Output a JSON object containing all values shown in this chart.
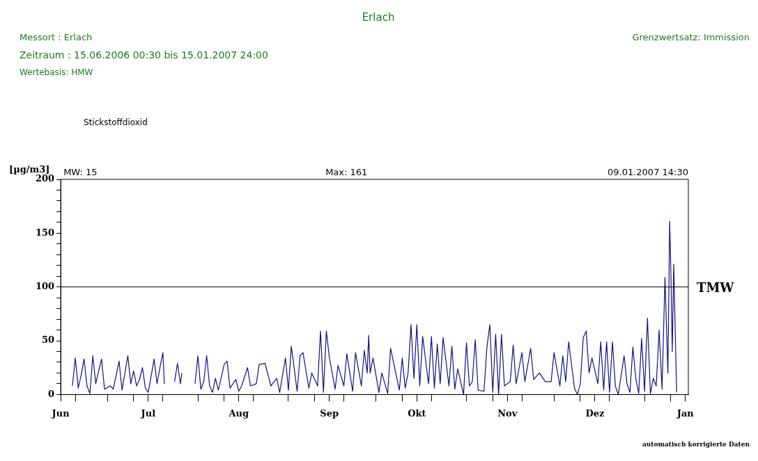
{
  "chart_data": {
    "type": "line",
    "title": "Erlach",
    "ylabel": "[µg/m3]",
    "annotations": [
      "Messort : Erlach",
      "Grenzwertsatz: Immission",
      "Zeitraum : 15.06.2006 00:30 bis 15.01.2007 24:00",
      "Wertebasis: HMW",
      "Stickstoffdioxid",
      "MW: 15",
      "Max: 161",
      "09.01.2007 14:30",
      "automatisch korrigierte Daten"
    ],
    "x": [
      "2006-06-19",
      "2006-06-20",
      "2006-06-21",
      "2006-06-22",
      "2006-06-23",
      "2006-06-24",
      "2006-06-25",
      "2006-06-26",
      "2006-06-27",
      "2006-06-28",
      "2006-06-29",
      "2006-06-30",
      "2006-07-02",
      "2006-07-03",
      "2006-07-05",
      "2006-07-06",
      "2006-07-08",
      "2006-07-09",
      "2006-07-10",
      "2006-07-11",
      "2006-07-12",
      "2006-07-13",
      "2006-07-14",
      "2006-07-15",
      "2006-07-17",
      "2006-07-18",
      "2006-07-19",
      "2006-07-20",
      "2006-07-20T12:00",
      "2006-07-22",
      "2006-07-24",
      "2006-07-25",
      "2006-07-26",
      "2006-07-26T12:00",
      "2006-07-28",
      "2006-07-31",
      "2006-08-01",
      "2006-08-02",
      "2006-08-03",
      "2006-08-04",
      "2006-08-05",
      "2006-08-06",
      "2006-08-07",
      "2006-08-08",
      "2006-08-10",
      "2006-08-11",
      "2006-08-12",
      "2006-08-14",
      "2006-08-15",
      "2006-08-16",
      "2006-08-18",
      "2006-08-19",
      "2006-08-21",
      "2006-08-22",
      "2006-08-24",
      "2006-08-26",
      "2006-08-28",
      "2006-08-29",
      "2006-08-31",
      "2006-09-01",
      "2006-09-02",
      "2006-09-04",
      "2006-09-05",
      "2006-09-06",
      "2006-09-08",
      "2006-09-09",
      "2006-09-11",
      "2006-09-12",
      "2006-09-13",
      "2006-09-14",
      "2006-09-15",
      "2006-09-17",
      "2006-09-18",
      "2006-09-20",
      "2006-09-21",
      "2006-09-23",
      "2006-09-24",
      "2006-09-26",
      "2006-09-27",
      "2006-09-28",
      "2006-09-28T12:00",
      "2006-09-29",
      "2006-09-30",
      "2006-10-02",
      "2006-10-03",
      "2006-10-05",
      "2006-10-06",
      "2006-10-09",
      "2006-10-10",
      "2006-10-11",
      "2006-10-12",
      "2006-10-13",
      "2006-10-14",
      "2006-10-15",
      "2006-10-16",
      "2006-10-17",
      "2006-10-19",
      "2006-10-20",
      "2006-10-21",
      "2006-10-22",
      "2006-10-23",
      "2006-10-24",
      "2006-10-26",
      "2006-10-27",
      "2006-10-28",
      "2006-10-29",
      "2006-10-31",
      "2006-11-01",
      "2006-11-02",
      "2006-11-03",
      "2006-11-04",
      "2006-11-05",
      "2006-11-07",
      "2006-11-08",
      "2006-11-09",
      "2006-11-10",
      "2006-11-11",
      "2006-11-12",
      "2006-11-13",
      "2006-11-14",
      "2006-11-16",
      "2006-11-17",
      "2006-11-18",
      "2006-11-20",
      "2006-11-21",
      "2006-11-23",
      "2006-11-24",
      "2006-11-26",
      "2006-11-28",
      "2006-11-30",
      "2006-12-01",
      "2006-12-03",
      "2006-12-04",
      "2006-12-05",
      "2006-12-06",
      "2006-12-08",
      "2006-12-09",
      "2006-12-10",
      "2006-12-11",
      "2006-12-12",
      "2006-12-13",
      "2006-12-14",
      "2006-12-16",
      "2006-12-17",
      "2006-12-18",
      "2006-12-19",
      "2006-12-20",
      "2006-12-21",
      "2006-12-22",
      "2006-12-23",
      "2006-12-25",
      "2006-12-26",
      "2006-12-27",
      "2006-12-28",
      "2006-12-29",
      "2006-12-30",
      "2006-12-31",
      "2007-01-01",
      "2007-01-02",
      "2007-01-03",
      "2007-01-04",
      "2007-01-05",
      "2007-01-06",
      "2007-01-07",
      "2007-01-08",
      "2007-01-09",
      "2007-01-09T14:30",
      "2007-01-10",
      "2007-01-10T12:00",
      "2007-01-11",
      "2007-01-11T12:00",
      "2007-01-12"
    ],
    "series": [
      {
        "color": "#101085",
        "values": [
          8,
          34,
          6,
          18,
          33,
          8,
          1,
          36,
          10,
          22,
          33,
          5,
          8,
          5,
          31,
          4,
          36,
          10,
          22,
          8,
          14,
          25,
          6,
          2,
          33,
          10,
          25,
          39,
          10,
          null,
          12,
          29,
          10,
          20,
          null,
          10,
          36,
          5,
          12,
          36,
          8,
          2,
          15,
          4,
          28,
          31,
          6,
          14,
          3,
          8,
          25,
          8,
          10,
          28,
          29,
          8,
          15,
          2,
          34,
          4,
          45,
          3,
          36,
          39,
          6,
          20,
          8,
          59,
          2,
          59,
          35,
          5,
          27,
          8,
          38,
          3,
          39,
          8,
          41,
          20,
          55,
          20,
          34,
          2,
          20,
          1,
          43,
          4,
          34,
          6,
          20,
          65,
          15,
          65,
          8,
          54,
          10,
          54,
          6,
          47,
          10,
          53,
          8,
          45,
          5,
          24,
          0,
          48,
          8,
          12,
          51,
          4,
          3,
          44,
          65,
          2,
          56,
          0,
          56,
          8,
          12,
          46,
          10,
          39,
          12,
          43,
          14,
          20,
          12,
          12,
          39,
          8,
          36,
          12,
          49,
          6,
          0,
          10,
          53,
          59,
          20,
          34,
          10,
          49,
          4,
          49,
          2,
          49,
          8,
          0,
          36,
          10,
          2,
          44,
          15,
          1,
          52,
          3,
          71,
          1,
          15,
          8,
          60,
          5,
          109,
          20,
          161,
          117,
          40,
          121,
          60,
          2
        ]
      }
    ],
    "xlim": [
      "2006-06-15",
      "2007-01-16"
    ],
    "xticks": [
      {
        "value": "2006-06-15",
        "label": "Jun"
      },
      {
        "value": "2006-06-20",
        "label": null
      },
      {
        "value": "2006-07-01",
        "label": null
      },
      {
        "value": "2006-07-10",
        "label": null
      },
      {
        "value": "2006-07-15",
        "label": "Jul"
      },
      {
        "value": "2006-07-20",
        "label": null
      },
      {
        "value": "2006-08-01",
        "label": null
      },
      {
        "value": "2006-08-10",
        "label": null
      },
      {
        "value": "2006-08-15",
        "label": "Aug"
      },
      {
        "value": "2006-08-20",
        "label": null
      },
      {
        "value": "2006-09-01",
        "label": null
      },
      {
        "value": "2006-09-10",
        "label": null
      },
      {
        "value": "2006-09-15",
        "label": "Sep"
      },
      {
        "value": "2006-09-20",
        "label": null
      },
      {
        "value": "2006-10-01",
        "label": null
      },
      {
        "value": "2006-10-10",
        "label": null
      },
      {
        "value": "2006-10-15",
        "label": "Okt"
      },
      {
        "value": "2006-10-20",
        "label": null
      },
      {
        "value": "2006-11-01",
        "label": null
      },
      {
        "value": "2006-11-10",
        "label": null
      },
      {
        "value": "2006-11-15",
        "label": "Nov"
      },
      {
        "value": "2006-11-20",
        "label": null
      },
      {
        "value": "2006-12-01",
        "label": null
      },
      {
        "value": "2006-12-10",
        "label": null
      },
      {
        "value": "2006-12-15",
        "label": "Dez"
      },
      {
        "value": "2006-12-20",
        "label": null
      },
      {
        "value": "2007-01-01",
        "label": null
      },
      {
        "value": "2007-01-10",
        "label": null
      },
      {
        "value": "2007-01-15",
        "label": "Jan"
      }
    ],
    "ylim": [
      0,
      200
    ],
    "yticks": [
      0,
      {
        "value": 10,
        "label": null
      },
      {
        "value": 20,
        "label": null
      },
      {
        "value": 30,
        "label": null
      },
      {
        "value": 40,
        "label": null
      },
      50,
      {
        "value": 60,
        "label": null
      },
      {
        "value": 70,
        "label": null
      },
      {
        "value": 80,
        "label": null
      },
      {
        "value": 90,
        "label": null
      },
      100,
      {
        "value": 110,
        "label": null
      },
      {
        "value": 120,
        "label": null
      },
      {
        "value": 130,
        "label": null
      },
      {
        "value": 140,
        "label": null
      },
      150,
      {
        "value": 160,
        "label": null
      },
      {
        "value": 170,
        "label": null
      },
      {
        "value": 180,
        "label": null
      },
      {
        "value": 190,
        "label": null
      },
      200
    ],
    "ref_lines": [
      {
        "axis": "y",
        "value": 100,
        "label": "TMW",
        "color": "#000000"
      }
    ],
    "grid": false,
    "legend": false,
    "marker": "none",
    "line_style": "solid"
  }
}
